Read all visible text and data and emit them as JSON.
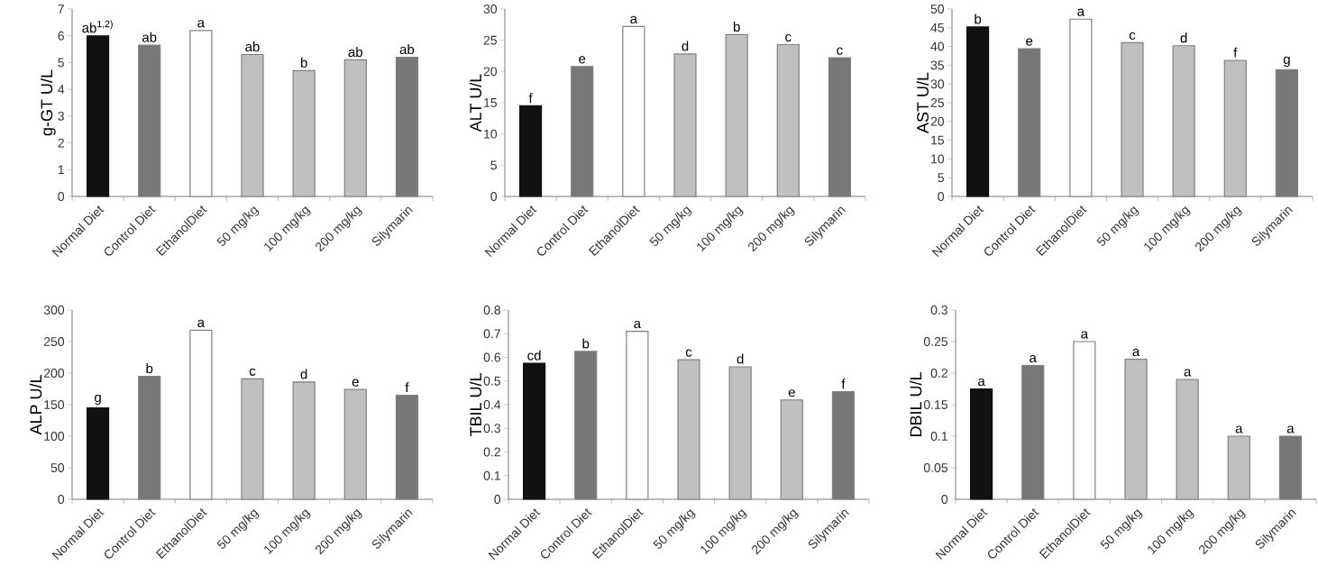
{
  "chart_data": [
    {
      "type": "bar",
      "ylabel": "g-GT U/L",
      "categories": [
        "Normal Diet",
        "Control Diet",
        "EthanolDiet",
        "50 mg/kg",
        "100 mg/kg",
        "200 mg/kg",
        "Silymarin"
      ],
      "values": [
        6.0,
        5.65,
        6.2,
        5.3,
        4.7,
        5.1,
        5.2
      ],
      "colors": [
        "#111111",
        "#777777",
        "#ffffff",
        "#c0c0c0",
        "#c0c0c0",
        "#c0c0c0",
        "#777777"
      ],
      "ylim": [
        0,
        7
      ],
      "yticks": [
        0,
        1,
        2,
        3,
        4,
        5,
        6,
        7
      ],
      "grid": false,
      "annotations": [
        {
          "text": "ab$^{1,2)}$",
          "x": "Normal Diet",
          "y": 6.0
        },
        {
          "text": "ab",
          "x": "Control Diet",
          "y": 5.65
        },
        {
          "text": "a",
          "x": "EthanolDiet",
          "y": 6.2
        },
        {
          "text": "ab",
          "x": "50 mg/kg",
          "y": 5.3
        },
        {
          "text": "b",
          "x": "100 mg/kg",
          "y": 4.7
        },
        {
          "text": "ab",
          "x": "200 mg/kg",
          "y": 5.1
        },
        {
          "text": "ab",
          "x": "Silymarin",
          "y": 5.2
        }
      ]
    },
    {
      "type": "bar",
      "ylabel": "ALT U/L",
      "categories": [
        "Normal Diet",
        "Control Diet",
        "EthanolDiet",
        "50 mg/kg",
        "100 mg/kg",
        "200 mg/kg",
        "Silymarin"
      ],
      "values": [
        14.5,
        20.8,
        27.2,
        22.8,
        25.9,
        24.3,
        22.2
      ],
      "colors": [
        "#111111",
        "#777777",
        "#ffffff",
        "#c0c0c0",
        "#c0c0c0",
        "#c0c0c0",
        "#777777"
      ],
      "ylim": [
        0,
        30
      ],
      "yticks": [
        0,
        5,
        10,
        15,
        20,
        25,
        30
      ],
      "grid": false,
      "annotations": [
        {
          "text": "f",
          "x": "Normal Diet",
          "y": 14.5
        },
        {
          "text": "e",
          "x": "Control Diet",
          "y": 20.8
        },
        {
          "text": "a",
          "x": "EthanolDiet",
          "y": 27.2
        },
        {
          "text": "d",
          "x": "50 mg/kg",
          "y": 22.8
        },
        {
          "text": "b",
          "x": "100 mg/kg",
          "y": 25.9
        },
        {
          "text": "c",
          "x": "200 mg/kg",
          "y": 24.3
        },
        {
          "text": "c",
          "x": "Silymarin",
          "y": 22.2
        }
      ]
    },
    {
      "type": "bar",
      "ylabel": "AST U/L",
      "categories": [
        "Normal Diet",
        "Control Diet",
        "EthanolDiet",
        "50 mg/kg",
        "100 mg/kg",
        "200 mg/kg",
        "Silymarin"
      ],
      "values": [
        45.2,
        39.4,
        47.3,
        41.0,
        40.2,
        36.3,
        33.8
      ],
      "colors": [
        "#111111",
        "#777777",
        "#ffffff",
        "#c0c0c0",
        "#c0c0c0",
        "#c0c0c0",
        "#777777"
      ],
      "ylim": [
        0,
        50
      ],
      "yticks": [
        0,
        5,
        10,
        15,
        20,
        25,
        30,
        35,
        40,
        45,
        50
      ],
      "grid": false,
      "annotations": [
        {
          "text": "b",
          "x": "Normal Diet",
          "y": 45.2
        },
        {
          "text": "e",
          "x": "Control Diet",
          "y": 39.4
        },
        {
          "text": "a",
          "x": "EthanolDiet",
          "y": 47.3
        },
        {
          "text": "c",
          "x": "50 mg/kg",
          "y": 41.0
        },
        {
          "text": "d",
          "x": "100 mg/kg",
          "y": 40.2
        },
        {
          "text": "f",
          "x": "200 mg/kg",
          "y": 36.3
        },
        {
          "text": "g",
          "x": "Silymarin",
          "y": 33.8
        }
      ]
    },
    {
      "type": "bar",
      "ylabel": "ALP U/L",
      "categories": [
        "Normal Diet",
        "Control Diet",
        "EthanolDiet",
        "50 mg/kg",
        "100 mg/kg",
        "200 mg/kg",
        "Silymarin"
      ],
      "values": [
        145,
        195,
        268,
        191,
        186,
        174,
        165
      ],
      "colors": [
        "#111111",
        "#777777",
        "#ffffff",
        "#c0c0c0",
        "#c0c0c0",
        "#c0c0c0",
        "#777777"
      ],
      "ylim": [
        0,
        300
      ],
      "yticks": [
        0,
        50,
        100,
        150,
        200,
        250,
        300
      ],
      "grid": false,
      "annotations": [
        {
          "text": "g",
          "x": "Normal Diet",
          "y": 145
        },
        {
          "text": "b",
          "x": "Control Diet",
          "y": 195
        },
        {
          "text": "a",
          "x": "EthanolDiet",
          "y": 268
        },
        {
          "text": "c",
          "x": "50 mg/kg",
          "y": 191
        },
        {
          "text": "d",
          "x": "100 mg/kg",
          "y": 186
        },
        {
          "text": "e",
          "x": "200 mg/kg",
          "y": 174
        },
        {
          "text": "f",
          "x": "Silymarin",
          "y": 165
        }
      ]
    },
    {
      "type": "bar",
      "ylabel": "TBIL U/L",
      "categories": [
        "Normal Diet",
        "Control Diet",
        "EthanolDiet",
        "50 mg/kg",
        "100 mg/kg",
        "200 mg/kg",
        "Silymarin"
      ],
      "values": [
        0.575,
        0.625,
        0.71,
        0.59,
        0.56,
        0.42,
        0.455
      ],
      "colors": [
        "#111111",
        "#777777",
        "#ffffff",
        "#c0c0c0",
        "#c0c0c0",
        "#c0c0c0",
        "#777777"
      ],
      "ylim": [
        0,
        0.8
      ],
      "yticks": [
        0,
        0.1,
        0.2,
        0.3,
        0.4,
        0.5,
        0.6,
        0.7,
        0.8
      ],
      "grid": false,
      "annotations": [
        {
          "text": "cd",
          "x": "Normal Diet",
          "y": 0.575
        },
        {
          "text": "b",
          "x": "Control Diet",
          "y": 0.625
        },
        {
          "text": "a",
          "x": "EthanolDiet",
          "y": 0.71
        },
        {
          "text": "c",
          "x": "50 mg/kg",
          "y": 0.59
        },
        {
          "text": "d",
          "x": "100 mg/kg",
          "y": 0.56
        },
        {
          "text": "e",
          "x": "200 mg/kg",
          "y": 0.42
        },
        {
          "text": "f",
          "x": "Silymarin",
          "y": 0.455
        }
      ]
    },
    {
      "type": "bar",
      "ylabel": "DBIL U/L",
      "categories": [
        "Normal Diet",
        "Control Diet",
        "EthanolDiet",
        "50 mg/kg",
        "100 mg/kg",
        "200 mg/kg",
        "Silymarin"
      ],
      "values": [
        0.175,
        0.212,
        0.25,
        0.222,
        0.19,
        0.1,
        0.1
      ],
      "colors": [
        "#111111",
        "#777777",
        "#ffffff",
        "#c0c0c0",
        "#c0c0c0",
        "#c0c0c0",
        "#777777"
      ],
      "ylim": [
        0,
        0.3
      ],
      "yticks": [
        0,
        0.05,
        0.1,
        0.15,
        0.2,
        0.25,
        0.3
      ],
      "grid": false,
      "annotations": [
        {
          "text": "a",
          "x": "Normal Diet",
          "y": 0.175
        },
        {
          "text": "a",
          "x": "Control Diet",
          "y": 0.212
        },
        {
          "text": "a",
          "x": "EthanolDiet",
          "y": 0.25
        },
        {
          "text": "a",
          "x": "50 mg/kg",
          "y": 0.222
        },
        {
          "text": "a",
          "x": "100 mg/kg",
          "y": 0.19
        },
        {
          "text": "a",
          "x": "200 mg/kg",
          "y": 0.1
        },
        {
          "text": "a",
          "x": "Silymarin",
          "y": 0.1
        }
      ]
    }
  ]
}
